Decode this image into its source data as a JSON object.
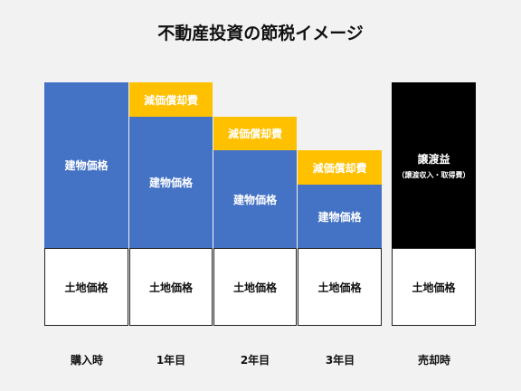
{
  "title": "不動産投資の節税イメージ",
  "labels": {
    "building": "建物価格",
    "depreciation": "減価償却費",
    "land": "土地価格",
    "gain": "譲渡益",
    "gain_sub": "（譲渡収入・取得費）"
  },
  "periods": [
    "購入時",
    "1年目",
    "2年目",
    "3年目",
    "売却時"
  ],
  "colors": {
    "building": "#4472c4",
    "depreciation": "#ffc000",
    "gain": "#000000",
    "land": "#ffffff"
  }
}
